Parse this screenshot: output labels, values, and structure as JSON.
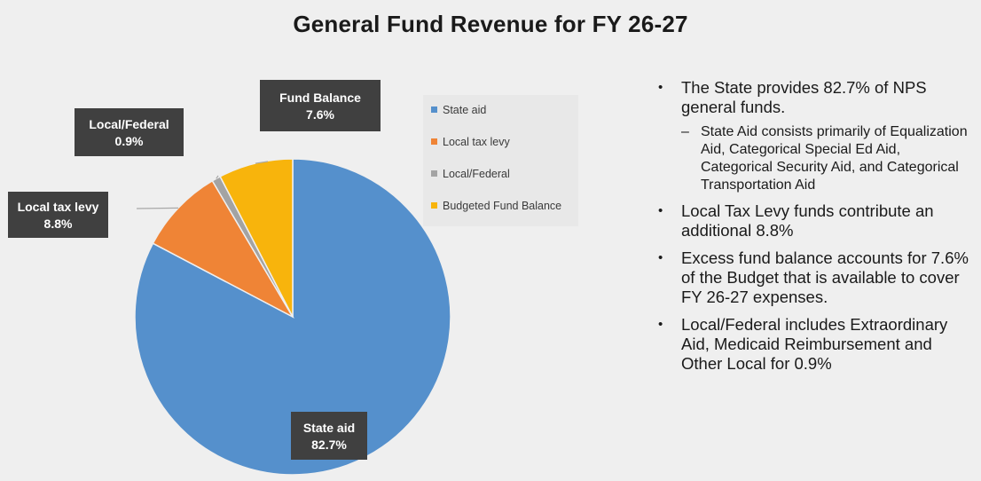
{
  "title": "General Fund Revenue for FY 26-27",
  "chart_data": {
    "type": "pie",
    "start_angle_deg": 0,
    "slices": [
      {
        "name": "State aid",
        "label_name": "State aid",
        "label_value": "82.7%",
        "value": 82.7,
        "color": "#5590cc"
      },
      {
        "name": "Local tax levy",
        "label_name": "Local tax levy",
        "label_value": "8.8%",
        "value": 8.8,
        "color": "#ef8436"
      },
      {
        "name": "Local/Federal",
        "label_name": "Local/Federal",
        "label_value": "0.9%",
        "value": 0.9,
        "color": "#a3a3a3"
      },
      {
        "name": "Budgeted Fund Balance",
        "label_name": "Fund Balance",
        "label_value": "7.6%",
        "value": 7.6,
        "color": "#f8b40c"
      }
    ],
    "legend": [
      "State aid",
      "Local tax levy",
      "Local/Federal",
      "Budgeted Fund Balance"
    ],
    "legend_position": "right"
  },
  "bullets": [
    {
      "text": "The State provides 82.7% of NPS general funds.",
      "sub": [
        "State Aid consists primarily of Equalization Aid, Categorical Special Ed Aid, Categorical Security Aid, and Categorical Transportation Aid"
      ]
    },
    {
      "text": "Local Tax Levy funds contribute an additional 8.8%",
      "sub": []
    },
    {
      "text": "Excess fund balance accounts for 7.6% of  the Budget that is available to cover FY 26-27 expenses.",
      "sub": []
    },
    {
      "text": "Local/Federal includes Extraordinary Aid, Medicaid Reimbursement and Other Local for 0.9%",
      "sub": []
    }
  ]
}
